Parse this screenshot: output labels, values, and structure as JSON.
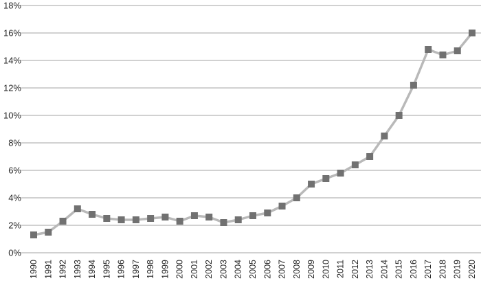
{
  "chart_data": {
    "type": "line",
    "title": "",
    "xlabel": "",
    "ylabel": "",
    "categories": [
      "1990",
      "1991",
      "1992",
      "1993",
      "1994",
      "1995",
      "1996",
      "1997",
      "1998",
      "1999",
      "2000",
      "2001",
      "2002",
      "2003",
      "2004",
      "2005",
      "2006",
      "2007",
      "2008",
      "2009",
      "2010",
      "2011",
      "2012",
      "2013",
      "2014",
      "2015",
      "2016",
      "2017",
      "2018",
      "2019",
      "2020"
    ],
    "series": [
      {
        "name": "percent",
        "values": [
          1.3,
          1.5,
          2.3,
          3.2,
          2.8,
          2.5,
          2.4,
          2.4,
          2.5,
          2.6,
          2.3,
          2.7,
          2.6,
          2.2,
          2.4,
          2.7,
          2.9,
          3.4,
          4.0,
          5.0,
          5.4,
          5.8,
          6.4,
          7.0,
          8.5,
          10.0,
          12.2,
          14.8,
          14.4,
          14.7,
          16.0
        ]
      }
    ],
    "ylim": [
      0,
      18
    ],
    "ytick_step": 2,
    "ytick_labels": [
      "0%",
      "2%",
      "4%",
      "6%",
      "8%",
      "10%",
      "12%",
      "14%",
      "16%",
      "18%"
    ],
    "grid": true,
    "legend_position": "none",
    "marker_shape": "square",
    "colors": {
      "line": "#b9b9b9",
      "marker": "#717171",
      "gridline": "#a3a3a3",
      "tick": "#a3a3a3",
      "axis_label_text": "#262626",
      "background": "#ffffff"
    }
  }
}
